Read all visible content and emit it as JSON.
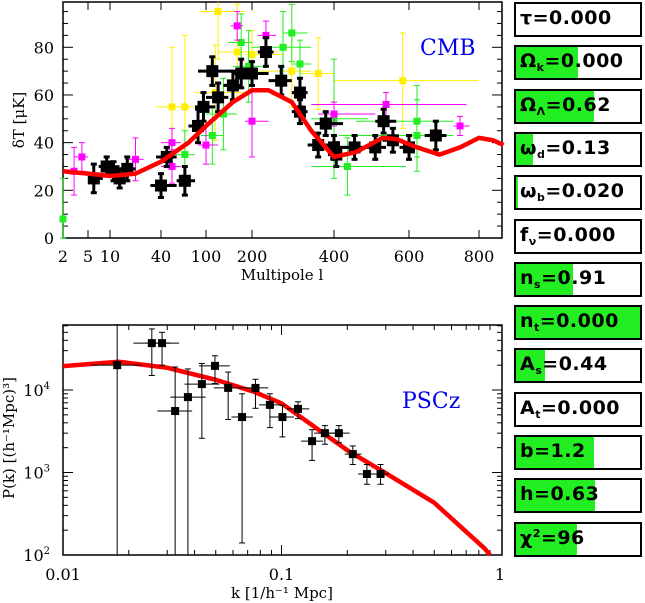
{
  "cmb_panel": {
    "label": "CMB",
    "chart_data": {
      "type": "scatter",
      "title": "",
      "annotation": "CMB",
      "xlabel": "Multipole l",
      "ylabel": "δT [μK]",
      "ylim": [
        0,
        99
      ],
      "xlim": [
        2,
        870
      ],
      "x_ticks": [
        2,
        5,
        10,
        40,
        100,
        200,
        400,
        600,
        800
      ],
      "x_tick_labels": [
        "2",
        "5",
        "10",
        "40",
        "100",
        "200",
        "400",
        "600",
        "800"
      ],
      "y_ticks": [
        0,
        20,
        40,
        60,
        80
      ],
      "y_tick_labels": [
        "0",
        "20",
        "40",
        "60",
        "80"
      ],
      "point_format": [
        "l",
        "dT",
        "dT_err",
        "l_min",
        "l_max"
      ],
      "series": [
        {
          "name": "black",
          "color": "#000000",
          "points": [
            [
              6,
              25,
              6,
              5,
              8
            ],
            [
              9,
              30,
              4,
              7,
              11
            ],
            [
              11,
              28,
              4,
              9,
              13
            ],
            [
              13,
              25,
              4,
              11,
              15
            ],
            [
              16,
              29,
              5,
              13,
              20
            ],
            [
              40,
              22,
              5,
              30,
              55
            ],
            [
              45,
              34,
              4,
              35,
              55
            ],
            [
              65,
              24,
              6,
              55,
              80
            ],
            [
              85,
              47,
              7,
              70,
              100
            ],
            [
              95,
              55,
              6,
              80,
              115
            ],
            [
              120,
              59,
              6,
              100,
              140
            ],
            [
              110,
              70,
              6,
              85,
              150
            ],
            [
              150,
              64,
              6,
              130,
              170
            ],
            [
              170,
              69,
              6,
              150,
              200
            ],
            [
              200,
              69,
              5,
              180,
              230
            ],
            [
              225,
              78,
              6,
              210,
              240
            ],
            [
              256,
              66,
              6,
              230,
              280
            ],
            [
              300,
              61,
              6,
              280,
              320
            ],
            [
              300,
              53,
              5,
              280,
              320
            ],
            [
              350,
              39,
              5,
              320,
              380
            ],
            [
              373,
              48,
              5,
              340,
              420
            ],
            [
              400,
              38,
              5,
              370,
              430
            ],
            [
              405,
              35,
              5,
              380,
              430
            ],
            [
              447,
              38,
              5,
              420,
              480
            ],
            [
              500,
              38,
              5,
              470,
              530
            ],
            [
              523,
              49,
              5,
              500,
              560
            ],
            [
              550,
              41,
              5,
              520,
              580
            ],
            [
              600,
              38,
              5,
              570,
              630
            ],
            [
              670,
              43,
              6,
              640,
              700
            ]
          ]
        },
        {
          "name": "green",
          "color": "#22ee22",
          "points": [
            [
              2,
              8,
              17,
              2,
              2
            ],
            [
              65,
              35,
              10,
              50,
              80
            ],
            [
              110,
              43,
              12,
              90,
              130
            ],
            [
              130,
              52,
              15,
              100,
              160
            ],
            [
              170,
              82,
              12,
              140,
              200
            ],
            [
              190,
              72,
              15,
              150,
              230
            ],
            [
              260,
              80,
              15,
              200,
              330
            ],
            [
              280,
              86,
              12,
              260,
              320
            ],
            [
              300,
              73,
              10,
              280,
              330
            ],
            [
              400,
              50,
              25,
              330,
              480
            ],
            [
              430,
              30,
              12,
              330,
              590
            ],
            [
              620,
              49,
              15,
              450,
              720
            ],
            [
              620,
              43,
              15,
              410,
              720
            ]
          ]
        },
        {
          "name": "magenta",
          "color": "#ff00ff",
          "points": [
            [
              4,
              34,
              6,
              3,
              5
            ],
            [
              3,
              28,
              10,
              2,
              4
            ],
            [
              20,
              33,
              9,
              15,
              25
            ],
            [
              50,
              40,
              6,
              40,
              60
            ],
            [
              50,
              30,
              7,
              40,
              60
            ],
            [
              100,
              39,
              8,
              85,
              120
            ],
            [
              160,
              89,
              6,
              145,
              175
            ],
            [
              200,
              49,
              15,
              180,
              230
            ],
            [
              225,
              85,
              6,
              210,
              245
            ],
            [
              400,
              52,
              5,
              350,
              500
            ],
            [
              530,
              56,
              5,
              330,
              760
            ],
            [
              740,
              47,
              4,
              720,
              770
            ]
          ]
        },
        {
          "name": "yellow",
          "color": "#ffee00",
          "points": [
            [
              50,
              55,
              25,
              35,
              65
            ],
            [
              65,
              55,
              30,
              55,
              80
            ],
            [
              115,
              61,
              20,
              80,
              200
            ],
            [
              120,
              95,
              20,
              90,
              180
            ],
            [
              160,
              78,
              20,
              120,
              250
            ],
            [
              200,
              77,
              10,
              180,
              260
            ],
            [
              280,
              70,
              15,
              200,
              330
            ],
            [
              350,
              69,
              15,
              300,
              400
            ],
            [
              580,
              66,
              20,
              400,
              800
            ]
          ]
        }
      ],
      "model_curve": {
        "name": "model",
        "color": "#ff0000",
        "points": [
          [
            2,
            28
          ],
          [
            5,
            27
          ],
          [
            10,
            26
          ],
          [
            20,
            27
          ],
          [
            40,
            32
          ],
          [
            70,
            40
          ],
          [
            100,
            47
          ],
          [
            150,
            57
          ],
          [
            200,
            62
          ],
          [
            230,
            62
          ],
          [
            280,
            57
          ],
          [
            330,
            45
          ],
          [
            400,
            34
          ],
          [
            450,
            36
          ],
          [
            520,
            42
          ],
          [
            560,
            41.5
          ],
          [
            620,
            38
          ],
          [
            680,
            35
          ],
          [
            740,
            38
          ],
          [
            800,
            42
          ],
          [
            840,
            41
          ],
          [
            870,
            39
          ]
        ]
      }
    }
  },
  "pscz_panel": {
    "label": "PSCz",
    "chart_data": {
      "type": "scatter",
      "title": "",
      "annotation": "PSCz",
      "xlabel": "k [1/h⁻¹ Mpc]",
      "ylabel": "P(k) [(h⁻¹Mpc)³]",
      "xscale": "log",
      "yscale": "log",
      "xlim": [
        0.01,
        1.01
      ],
      "ylim": [
        100,
        61600
      ],
      "x_ticks": [
        0.01,
        0.1,
        1
      ],
      "x_tick_labels": [
        "0.01",
        "0.1",
        "1"
      ],
      "y_ticks": [
        100,
        1000,
        10000
      ],
      "y_tick_base": [
        "10",
        "10",
        "10"
      ],
      "y_tick_exp": [
        "2",
        "3",
        "4"
      ],
      "point_format": [
        "k",
        "P",
        "P_low",
        "P_high",
        "k_min",
        "k_max"
      ],
      "series": [
        {
          "name": "PSCz data",
          "color": "#000000",
          "points": [
            [
              0.0177,
              20000,
              100,
              62000,
              0.0135,
              0.023
            ],
            [
              0.0255,
              37000,
              15000,
              55000,
              0.021,
              0.031
            ],
            [
              0.0284,
              37000,
              20000,
              50000,
              0.024,
              0.034
            ],
            [
              0.0326,
              5560,
              100,
              19000,
              0.027,
              0.039
            ],
            [
              0.0373,
              8200,
              100,
              18000,
              0.031,
              0.045
            ],
            [
              0.0432,
              11800,
              2600,
              21000,
              0.036,
              0.052
            ],
            [
              0.0496,
              19600,
              12000,
              26000,
              0.042,
              0.058
            ],
            [
              0.057,
              10600,
              4400,
              16500,
              0.049,
              0.066
            ],
            [
              0.066,
              4700,
              140,
              9000,
              0.059,
              0.074
            ],
            [
              0.076,
              10600,
              6000,
              13500,
              0.066,
              0.087
            ],
            [
              0.0885,
              6600,
              3500,
              9000,
              0.079,
              0.099
            ],
            [
              0.101,
              4700,
              2700,
              6500,
              0.088,
              0.114
            ],
            [
              0.119,
              5900,
              4500,
              7200,
              0.106,
              0.134
            ],
            [
              0.138,
              2400,
              1400,
              3300,
              0.123,
              0.155
            ],
            [
              0.158,
              3000,
              2200,
              3700,
              0.141,
              0.178
            ],
            [
              0.183,
              3000,
              2300,
              3700,
              0.163,
              0.205
            ],
            [
              0.212,
              1670,
              1250,
              2100,
              0.195,
              0.232
            ],
            [
              0.246,
              960,
              720,
              1250,
              0.224,
              0.27
            ],
            [
              0.284,
              960,
              720,
              1250,
              0.26,
              0.31
            ]
          ]
        }
      ],
      "model_curve": {
        "name": "model",
        "color": "#ff0000",
        "points": [
          [
            0.01,
            19500
          ],
          [
            0.018,
            22000
          ],
          [
            0.03,
            18600
          ],
          [
            0.05,
            13300
          ],
          [
            0.075,
            9500
          ],
          [
            0.1,
            6900
          ],
          [
            0.2,
            1860
          ],
          [
            0.3,
            980
          ],
          [
            0.5,
            430
          ],
          [
            0.85,
            120
          ],
          [
            0.9,
            100
          ]
        ]
      }
    }
  },
  "sliders": [
    {
      "symbol": "τ",
      "sub": "",
      "sup": "",
      "value_text": "=0.000",
      "fill": 0.0
    },
    {
      "symbol": "Ω",
      "sub": "k",
      "sup": "",
      "value_text": "=0.000",
      "fill": 0.5
    },
    {
      "symbol": "Ω",
      "sub": "Λ",
      "sup": "",
      "value_text": "=0.62",
      "fill": 0.63
    },
    {
      "symbol": "ω",
      "sub": "d",
      "sup": "",
      "value_text": "=0.13",
      "fill": 0.14
    },
    {
      "symbol": "ω",
      "sub": "b",
      "sup": "",
      "value_text": "=0.020",
      "fill": 0.02
    },
    {
      "symbol": "f",
      "sub": "ν",
      "sup": "",
      "value_text": "=0.000",
      "fill": 0.0
    },
    {
      "symbol": "n",
      "sub": "s",
      "sup": "",
      "value_text": "=0.91",
      "fill": 0.46
    },
    {
      "symbol": "n",
      "sub": "t",
      "sup": "",
      "value_text": "=0.000",
      "fill": 1.0
    },
    {
      "symbol": "A",
      "sub": "s",
      "sup": "",
      "value_text": "=0.44",
      "fill": 0.23
    },
    {
      "symbol": "A",
      "sub": "t",
      "sup": "",
      "value_text": "=0.000",
      "fill": 0.0
    },
    {
      "symbol": "b",
      "sub": "",
      "sup": "",
      "value_text": "=1.2",
      "fill": 0.63
    },
    {
      "symbol": "h",
      "sub": "",
      "sup": "",
      "value_text": "=0.63",
      "fill": 0.64
    },
    {
      "symbol": "χ",
      "sub": "",
      "sup": "2",
      "value_text": "=96",
      "fill": 0.49
    }
  ],
  "colors": {
    "slider_fill": "#22ee22",
    "model": "#ff0000",
    "annotation": "#0000ee"
  }
}
